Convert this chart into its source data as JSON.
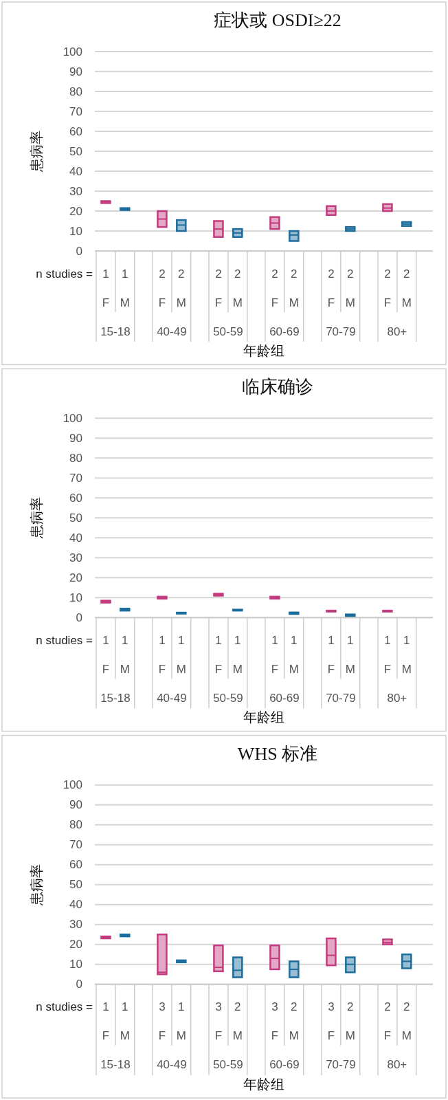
{
  "chart_data": [
    {
      "type": "box",
      "title": "症状或 OSDI≥22",
      "xlabel": "年龄组",
      "ylabel": "患病率",
      "annotations": [
        "n studies ="
      ],
      "categories": [
        "15-18",
        "40-49",
        "50-59",
        "60-69",
        "70-79",
        "80+"
      ],
      "ylim": [
        0,
        100
      ],
      "yticks": [
        0,
        10,
        20,
        30,
        40,
        50,
        60,
        70,
        80,
        90,
        100
      ],
      "grid": "y",
      "series": [
        {
          "name": "F",
          "color": "#c23b7e",
          "value_labels": [
            "1",
            "2",
            "2",
            "2",
            "2",
            "2"
          ],
          "boxes": [
            {
              "low": 24,
              "q1": 24,
              "median": 24.5,
              "q3": 25,
              "high": 25
            },
            {
              "low": 12,
              "q1": 12,
              "median": 16,
              "q3": 20,
              "high": 20
            },
            {
              "low": 7,
              "q1": 7,
              "median": 11,
              "q3": 15,
              "high": 15
            },
            {
              "low": 11,
              "q1": 11,
              "median": 14,
              "q3": 17,
              "high": 17
            },
            {
              "low": 18,
              "q1": 18,
              "median": 20,
              "q3": 22.5,
              "high": 22.5
            },
            {
              "low": 20,
              "q1": 20,
              "median": 21.5,
              "q3": 23.5,
              "high": 23.5
            }
          ]
        },
        {
          "name": "M",
          "color": "#1c6c9c",
          "value_labels": [
            "1",
            "2",
            "2",
            "2",
            "2",
            "2"
          ],
          "boxes": [
            {
              "low": 20.5,
              "q1": 20.5,
              "median": 21,
              "q3": 21.5,
              "high": 21.5
            },
            {
              "low": 10,
              "q1": 10,
              "median": 13,
              "q3": 15.5,
              "high": 15.5
            },
            {
              "low": 7,
              "q1": 7,
              "median": 9,
              "q3": 11,
              "high": 11
            },
            {
              "low": 5,
              "q1": 5,
              "median": 8,
              "q3": 10,
              "high": 10
            },
            {
              "low": 10,
              "q1": 10,
              "median": 11,
              "q3": 12,
              "high": 12
            },
            {
              "low": 12.5,
              "q1": 12.5,
              "median": 13.5,
              "q3": 14.5,
              "high": 14.5
            }
          ]
        }
      ]
    },
    {
      "type": "box",
      "title": "临床确诊",
      "xlabel": "年龄组",
      "ylabel": "患病率",
      "annotations": [
        "n studies ="
      ],
      "categories": [
        "15-18",
        "40-49",
        "50-59",
        "60-69",
        "70-79",
        "80+"
      ],
      "ylim": [
        0,
        100
      ],
      "yticks": [
        0,
        10,
        20,
        30,
        40,
        50,
        60,
        70,
        80,
        90,
        100
      ],
      "grid": "y",
      "series": [
        {
          "name": "F",
          "color": "#c23b7e",
          "value_labels": [
            "1",
            "1",
            "1",
            "1",
            "1",
            "1"
          ],
          "boxes": [
            {
              "low": 7.5,
              "q1": 7.5,
              "median": 8,
              "q3": 8.5,
              "high": 8.5
            },
            {
              "low": 9.5,
              "q1": 9.5,
              "median": 10,
              "q3": 10.5,
              "high": 10.5
            },
            {
              "low": 11,
              "q1": 11,
              "median": 11.5,
              "q3": 12,
              "high": 12
            },
            {
              "low": 9.5,
              "q1": 9.5,
              "median": 10,
              "q3": 10.5,
              "high": 10.5
            },
            {
              "low": 3,
              "q1": 3,
              "median": 3.2,
              "q3": 3.5,
              "high": 3.5
            },
            {
              "low": 3,
              "q1": 3,
              "median": 3.2,
              "q3": 3.5,
              "high": 3.5
            }
          ]
        },
        {
          "name": "M",
          "color": "#1c6c9c",
          "value_labels": [
            "1",
            "1",
            "1",
            "1",
            "1",
            "1"
          ],
          "boxes": [
            {
              "low": 3.5,
              "q1": 3.5,
              "median": 4,
              "q3": 4.5,
              "high": 4.5
            },
            {
              "low": 2,
              "q1": 2,
              "median": 2.2,
              "q3": 2.5,
              "high": 2.5
            },
            {
              "low": 3.5,
              "q1": 3.5,
              "median": 3.7,
              "q3": 4,
              "high": 4
            },
            {
              "low": 1.8,
              "q1": 1.8,
              "median": 2.2,
              "q3": 2.6,
              "high": 2.6
            },
            {
              "low": 0.8,
              "q1": 0.8,
              "median": 1.2,
              "q3": 1.6,
              "high": 1.6
            },
            null
          ]
        }
      ]
    },
    {
      "type": "box",
      "title": "WHS 标准",
      "xlabel": "年龄组",
      "ylabel": "患病率",
      "annotations": [
        "n studies ="
      ],
      "categories": [
        "15-18",
        "40-49",
        "50-59",
        "60-69",
        "70-79",
        "80+"
      ],
      "ylim": [
        0,
        100
      ],
      "yticks": [
        0,
        10,
        20,
        30,
        40,
        50,
        60,
        70,
        80,
        90,
        100
      ],
      "grid": "y",
      "series": [
        {
          "name": "F",
          "color": "#c23b7e",
          "value_labels": [
            "1",
            "3",
            "3",
            "3",
            "3",
            "2"
          ],
          "boxes": [
            {
              "low": 23,
              "q1": 23,
              "median": 23.5,
              "q3": 24,
              "high": 24
            },
            {
              "low": 5,
              "q1": 5,
              "median": 6,
              "q3": 25,
              "high": 25
            },
            {
              "low": 6.5,
              "q1": 6.5,
              "median": 8.5,
              "q3": 19.5,
              "high": 19.5
            },
            {
              "low": 7.5,
              "q1": 7.5,
              "median": 13,
              "q3": 19.5,
              "high": 19.5
            },
            {
              "low": 9.5,
              "q1": 9.5,
              "median": 14.5,
              "q3": 23,
              "high": 23
            },
            {
              "low": 20,
              "q1": 20,
              "median": 21,
              "q3": 22.5,
              "high": 22.5
            }
          ]
        },
        {
          "name": "M",
          "color": "#1c6c9c",
          "value_labels": [
            "1",
            "1",
            "2",
            "2",
            "2",
            "2"
          ],
          "boxes": [
            {
              "low": 24,
              "q1": 24,
              "median": 24.5,
              "q3": 25,
              "high": 25
            },
            {
              "low": 11,
              "q1": 11,
              "median": 11.5,
              "q3": 12,
              "high": 12
            },
            {
              "low": 3.5,
              "q1": 3.5,
              "median": 7,
              "q3": 13.5,
              "high": 13.5
            },
            {
              "low": 3.5,
              "q1": 3.5,
              "median": 7.5,
              "q3": 11.5,
              "high": 11.5
            },
            {
              "low": 6,
              "q1": 6,
              "median": 10,
              "q3": 13.5,
              "high": 13.5
            },
            {
              "low": 8,
              "q1": 8,
              "median": 11.5,
              "q3": 15,
              "high": 15
            }
          ]
        }
      ]
    }
  ]
}
